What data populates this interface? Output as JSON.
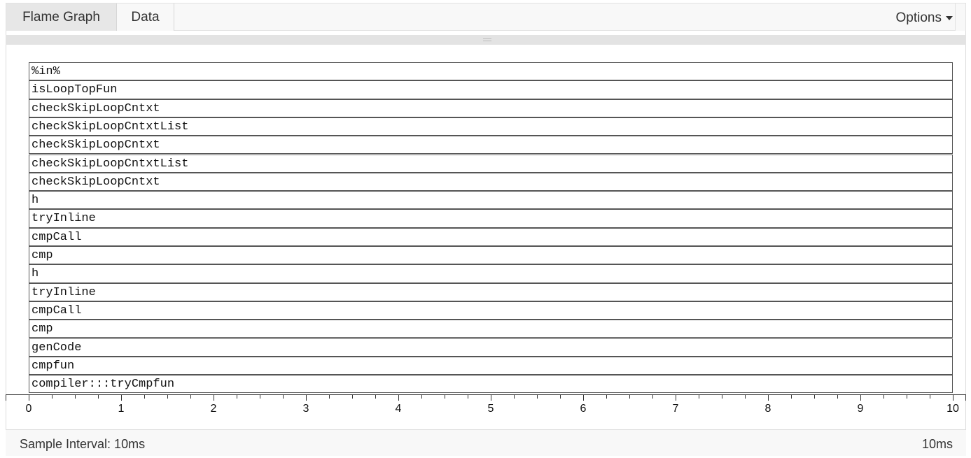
{
  "tabs": {
    "flame_graph": "Flame Graph",
    "data": "Data"
  },
  "options": {
    "label": "Options"
  },
  "flame_rows": [
    "%in%",
    "isLoopTopFun",
    "checkSkipLoopCntxt",
    "checkSkipLoopCntxtList",
    "checkSkipLoopCntxt",
    "checkSkipLoopCntxtList",
    "checkSkipLoopCntxt",
    "h",
    "tryInline",
    "cmpCall",
    "cmp",
    "h",
    "tryInline",
    "cmpCall",
    "cmp",
    "genCode",
    "cmpfun",
    "compiler:::tryCmpfun"
  ],
  "axis": {
    "min": 0,
    "max": 10,
    "ticks": [
      "0",
      "1",
      "2",
      "3",
      "4",
      "5",
      "6",
      "7",
      "8",
      "9",
      "10"
    ]
  },
  "footer": {
    "sample_interval": "Sample Interval: 10ms",
    "total_time": "10ms"
  }
}
